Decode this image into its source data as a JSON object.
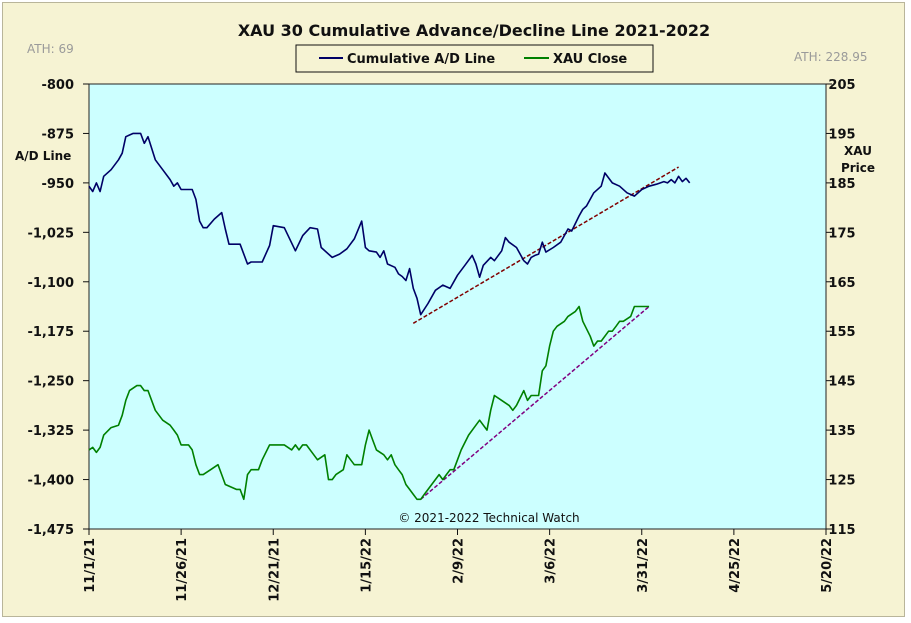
{
  "chart_data": {
    "type": "line",
    "title": "XAU 30 Cumulative  Advance/Decline  Line  2021-2022",
    "ath_left": "ATH: 69",
    "ath_right": "ATH: 228.95",
    "left_axis": {
      "label_line1": "A/D Line",
      "range": [
        -1475,
        -800
      ],
      "ticks": [
        "-800",
        "-875",
        "-950",
        "-1,025",
        "-1,100",
        "-1,175",
        "-1,250",
        "-1,325",
        "-1,400",
        "-1,475"
      ],
      "tick_values": [
        -800,
        -875,
        -950,
        -1025,
        -1100,
        -1175,
        -1250,
        -1325,
        -1400,
        -1475
      ]
    },
    "right_axis": {
      "label_line1": "XAU",
      "label_line2": "Price",
      "range": [
        115,
        205
      ],
      "ticks": [
        "205",
        "195",
        "185",
        "175",
        "165",
        "155",
        "145",
        "135",
        "125",
        "115"
      ],
      "tick_values": [
        205,
        195,
        185,
        175,
        165,
        155,
        145,
        135,
        125,
        115
      ]
    },
    "x_axis": {
      "ticks": [
        "11/1/21",
        "11/26/21",
        "12/21/21",
        "1/15/22",
        "2/9/22",
        "3/6/22",
        "3/31/22",
        "4/25/22",
        "5/20/22"
      ],
      "tick_days": [
        0,
        25,
        50,
        75,
        100,
        125,
        150,
        175,
        200
      ],
      "range_days": [
        0,
        200
      ]
    },
    "legend": {
      "items": [
        {
          "label": "Cumulative A/D Line",
          "color": "#000066"
        },
        {
          "label": "XAU Close",
          "color": "#008000"
        }
      ],
      "placement": "top-center"
    },
    "copyright": "© 2021-2022  Technical  Watch",
    "background_color": "#ccffff",
    "series": [
      {
        "name": "Cumulative A/D Line",
        "axis": "left",
        "color": "#000066",
        "points": [
          [
            0,
            -955
          ],
          [
            1,
            -963
          ],
          [
            2,
            -950
          ],
          [
            3,
            -963
          ],
          [
            4,
            -940
          ],
          [
            6,
            -930
          ],
          [
            8,
            -915
          ],
          [
            9,
            -905
          ],
          [
            10,
            -880
          ],
          [
            12,
            -875
          ],
          [
            14,
            -875
          ],
          [
            15,
            -890
          ],
          [
            16,
            -880
          ],
          [
            18,
            -915
          ],
          [
            20,
            -930
          ],
          [
            22,
            -945
          ],
          [
            23,
            -955
          ],
          [
            24,
            -950
          ],
          [
            25,
            -960
          ],
          [
            28,
            -960
          ],
          [
            29,
            -975
          ],
          [
            30,
            -1008
          ],
          [
            31,
            -1018
          ],
          [
            32,
            -1018
          ],
          [
            34,
            -1005
          ],
          [
            36,
            -995
          ],
          [
            37,
            -1020
          ],
          [
            38,
            -1043
          ],
          [
            40,
            -1043
          ],
          [
            41,
            -1043
          ],
          [
            43,
            -1073
          ],
          [
            44,
            -1070
          ],
          [
            45,
            -1070
          ],
          [
            47,
            -1070
          ],
          [
            49,
            -1045
          ],
          [
            50,
            -1015
          ],
          [
            53,
            -1018
          ],
          [
            56,
            -1053
          ],
          [
            58,
            -1030
          ],
          [
            60,
            -1018
          ],
          [
            62,
            -1020
          ],
          [
            63,
            -1048
          ],
          [
            66,
            -1063
          ],
          [
            68,
            -1058
          ],
          [
            70,
            -1050
          ],
          [
            72,
            -1035
          ],
          [
            74,
            -1008
          ],
          [
            75,
            -1048
          ],
          [
            76,
            -1053
          ],
          [
            78,
            -1055
          ],
          [
            79,
            -1063
          ],
          [
            80,
            -1053
          ],
          [
            81,
            -1073
          ],
          [
            83,
            -1078
          ],
          [
            84,
            -1088
          ],
          [
            85,
            -1092
          ],
          [
            86,
            -1098
          ],
          [
            87,
            -1080
          ],
          [
            88,
            -1110
          ],
          [
            89,
            -1125
          ],
          [
            90,
            -1150
          ],
          [
            92,
            -1133
          ],
          [
            94,
            -1113
          ],
          [
            96,
            -1105
          ],
          [
            98,
            -1110
          ],
          [
            100,
            -1090
          ],
          [
            102,
            -1075
          ],
          [
            104,
            -1060
          ],
          [
            105,
            -1073
          ],
          [
            106,
            -1093
          ],
          [
            107,
            -1075
          ],
          [
            109,
            -1063
          ],
          [
            110,
            -1068
          ],
          [
            112,
            -1053
          ],
          [
            113,
            -1033
          ],
          [
            114,
            -1040
          ],
          [
            116,
            -1048
          ],
          [
            118,
            -1068
          ],
          [
            119,
            -1073
          ],
          [
            120,
            -1063
          ],
          [
            121,
            -1060
          ],
          [
            122,
            -1058
          ],
          [
            123,
            -1040
          ],
          [
            124,
            -1055
          ],
          [
            126,
            -1048
          ],
          [
            128,
            -1040
          ],
          [
            130,
            -1020
          ],
          [
            131,
            -1023
          ],
          [
            133,
            -1000
          ],
          [
            134,
            -990
          ],
          [
            135,
            -985
          ],
          [
            137,
            -965
          ],
          [
            139,
            -955
          ],
          [
            140,
            -935
          ],
          [
            142,
            -950
          ],
          [
            144,
            -955
          ],
          [
            146,
            -965
          ],
          [
            148,
            -970
          ],
          [
            150,
            -960
          ],
          [
            152,
            -955
          ],
          [
            154,
            -952
          ],
          [
            156,
            -948
          ],
          [
            157,
            -950
          ],
          [
            158,
            -945
          ],
          [
            159,
            -950
          ],
          [
            160,
            -940
          ],
          [
            161,
            -948
          ],
          [
            162,
            -943
          ],
          [
            163,
            -950
          ]
        ]
      },
      {
        "name": "XAU Close",
        "axis": "right",
        "color": "#008000",
        "points": [
          [
            0,
            131
          ],
          [
            1,
            131.5
          ],
          [
            2,
            130.5
          ],
          [
            3,
            131.5
          ],
          [
            4,
            134
          ],
          [
            6,
            135.5
          ],
          [
            8,
            136
          ],
          [
            9,
            138
          ],
          [
            10,
            141
          ],
          [
            11,
            143
          ],
          [
            13,
            144
          ],
          [
            14,
            144
          ],
          [
            15,
            143
          ],
          [
            16,
            143
          ],
          [
            18,
            139
          ],
          [
            20,
            137
          ],
          [
            22,
            136
          ],
          [
            23,
            135
          ],
          [
            24,
            134
          ],
          [
            25,
            132
          ],
          [
            27,
            132
          ],
          [
            28,
            131
          ],
          [
            29,
            128
          ],
          [
            30,
            126
          ],
          [
            31,
            126
          ],
          [
            33,
            127
          ],
          [
            35,
            128
          ],
          [
            36,
            126
          ],
          [
            37,
            124
          ],
          [
            40,
            123
          ],
          [
            41,
            123
          ],
          [
            42,
            121
          ],
          [
            43,
            126
          ],
          [
            44,
            127
          ],
          [
            46,
            127
          ],
          [
            47,
            129
          ],
          [
            49,
            132
          ],
          [
            51,
            132
          ],
          [
            53,
            132
          ],
          [
            55,
            131
          ],
          [
            56,
            132
          ],
          [
            57,
            131
          ],
          [
            58,
            132
          ],
          [
            59,
            132
          ],
          [
            61,
            130
          ],
          [
            62,
            129
          ],
          [
            64,
            130
          ],
          [
            65,
            125
          ],
          [
            66,
            125
          ],
          [
            67,
            126
          ],
          [
            69,
            127
          ],
          [
            70,
            130
          ],
          [
            71,
            129
          ],
          [
            72,
            128
          ],
          [
            74,
            128
          ],
          [
            75,
            132
          ],
          [
            76,
            135
          ],
          [
            77,
            133
          ],
          [
            78,
            131
          ],
          [
            80,
            130
          ],
          [
            81,
            129
          ],
          [
            82,
            130
          ],
          [
            83,
            128
          ],
          [
            84,
            127
          ],
          [
            85,
            126
          ],
          [
            86,
            124
          ],
          [
            87,
            123
          ],
          [
            88,
            122
          ],
          [
            89,
            121
          ],
          [
            90,
            121
          ],
          [
            91,
            122
          ],
          [
            93,
            124
          ],
          [
            95,
            126
          ],
          [
            96,
            125
          ],
          [
            97,
            126
          ],
          [
            98,
            127
          ],
          [
            99,
            127
          ],
          [
            100,
            129
          ],
          [
            101,
            131
          ],
          [
            103,
            134
          ],
          [
            105,
            136
          ],
          [
            106,
            137
          ],
          [
            108,
            135
          ],
          [
            109,
            139
          ],
          [
            110,
            142
          ],
          [
            112,
            141
          ],
          [
            114,
            140
          ],
          [
            115,
            139
          ],
          [
            116,
            140
          ],
          [
            118,
            143
          ],
          [
            119,
            141
          ],
          [
            120,
            142
          ],
          [
            122,
            142
          ],
          [
            123,
            147
          ],
          [
            124,
            148
          ],
          [
            125,
            152
          ],
          [
            126,
            155
          ],
          [
            127,
            156
          ],
          [
            129,
            157
          ],
          [
            130,
            158
          ],
          [
            132,
            159
          ],
          [
            133,
            160
          ],
          [
            134,
            157
          ],
          [
            136,
            154
          ],
          [
            137,
            152
          ],
          [
            138,
            153
          ],
          [
            139,
            153
          ],
          [
            141,
            155
          ],
          [
            142,
            155
          ],
          [
            143,
            156
          ],
          [
            144,
            157
          ],
          [
            145,
            157
          ],
          [
            147,
            158
          ],
          [
            148,
            160
          ],
          [
            149,
            160
          ],
          [
            150,
            160
          ],
          [
            151,
            160
          ],
          [
            152,
            160
          ]
        ]
      }
    ],
    "trendlines": [
      {
        "axis": "left",
        "start": [
          88,
          -1163
        ],
        "end": [
          160,
          -926
        ],
        "color": "#800000"
      },
      {
        "axis": "right",
        "start": [
          90,
          121
        ],
        "end": [
          152,
          160
        ],
        "color": "#800080"
      }
    ]
  }
}
